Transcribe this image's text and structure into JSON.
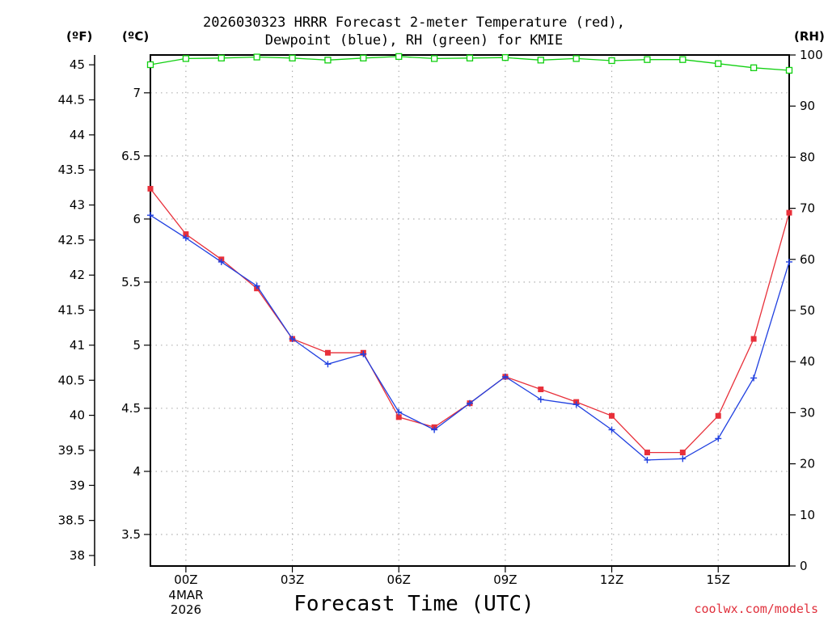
{
  "titles": {
    "line1": "2026030323 HRRR Forecast 2-meter Temperature (red),",
    "line2": "Dewpoint (blue), RH (green) for KMIE"
  },
  "axis_units": {
    "fahrenheit": "(ºF)",
    "celsius": "(ºC)",
    "rh": "(RH)"
  },
  "xaxis_title": "Forecast Time (UTC)",
  "date_label": {
    "day": "4MAR",
    "year": "2026"
  },
  "credit": "coolwx.com/models",
  "colors": {
    "temperature": "#e8303a",
    "dewpoint": "#2040e0",
    "rh": "#10d010",
    "credit": "#e0303c"
  },
  "chart_data": {
    "type": "line",
    "title": "2026030323 HRRR Forecast 2-meter Temperature (red), Dewpoint (blue), RH (green) for KMIE",
    "xlabel": "Forecast Time (UTC)",
    "x": [
      -1,
      0,
      1,
      2,
      3,
      4,
      5,
      6,
      7,
      8,
      9,
      10,
      11,
      12,
      13,
      14,
      15,
      16,
      17
    ],
    "x_ticks": [
      {
        "hour": 0,
        "label": "00Z"
      },
      {
        "hour": 3,
        "label": "03Z"
      },
      {
        "hour": 6,
        "label": "06Z"
      },
      {
        "hour": 9,
        "label": "09Z"
      },
      {
        "hour": 12,
        "label": "12Z"
      },
      {
        "hour": 15,
        "label": "15Z"
      }
    ],
    "xlim": [
      -1,
      17
    ],
    "y_celsius": {
      "ylim": [
        3.25,
        7.3
      ],
      "ticks": [
        "3.5",
        "4",
        "4.5",
        "5",
        "5.5",
        "6",
        "6.5",
        "7"
      ]
    },
    "y_fahrenheit": {
      "ticks": [
        "38",
        "38.5",
        "39",
        "39.5",
        "40",
        "40.5",
        "41",
        "41.5",
        "42",
        "42.5",
        "43",
        "43.5",
        "44",
        "44.5",
        "45"
      ]
    },
    "y_rh": {
      "ylim": [
        0,
        100
      ],
      "ticks": [
        "0",
        "10",
        "20",
        "30",
        "40",
        "50",
        "60",
        "70",
        "80",
        "90",
        "100"
      ]
    },
    "series": [
      {
        "name": "Temperature",
        "axis": "celsius",
        "marker": "square",
        "values": [
          6.24,
          5.88,
          5.68,
          5.45,
          5.05,
          4.94,
          4.94,
          4.43,
          4.35,
          4.54,
          4.75,
          4.65,
          4.55,
          4.44,
          4.15,
          4.15,
          4.44,
          5.05,
          6.05
        ]
      },
      {
        "name": "Dewpoint",
        "axis": "celsius",
        "marker": "plus",
        "values": [
          6.03,
          5.85,
          5.66,
          5.47,
          5.05,
          4.85,
          4.93,
          4.47,
          4.33,
          4.54,
          4.75,
          4.57,
          4.53,
          4.33,
          4.09,
          4.1,
          4.26,
          4.74,
          5.66
        ]
      },
      {
        "name": "RH",
        "axis": "rh",
        "marker": "open-square",
        "values": [
          98.1,
          99.3,
          99.4,
          99.6,
          99.4,
          99.0,
          99.4,
          99.7,
          99.3,
          99.4,
          99.5,
          99.0,
          99.3,
          98.9,
          99.1,
          99.1,
          98.3,
          97.5,
          97.0
        ]
      }
    ]
  }
}
